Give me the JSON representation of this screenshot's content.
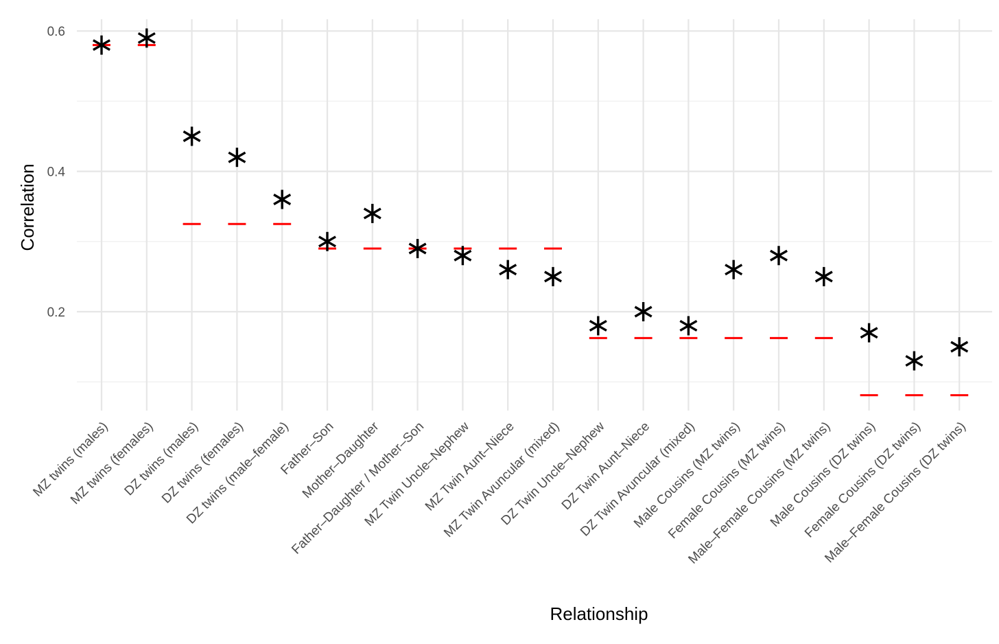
{
  "chart_data": {
    "type": "scatter",
    "xlabel": "Relationship",
    "ylabel": "Correlation",
    "ylim": [
      0.065,
      0.615
    ],
    "yticks": [
      0.2,
      0.4,
      0.6
    ],
    "ytick_labels": [
      "0.2",
      "0.4",
      "0.6"
    ],
    "grid": true,
    "legend": "none",
    "categories": [
      "MZ twins (males)",
      "MZ twins (females)",
      "DZ twins (males)",
      "DZ twins (females)",
      "DZ twins (male–female)",
      "Father–Son",
      "Mother–Daughter",
      "Father–Daughter / Mother–Son",
      "MZ Twin Uncle–Nephew",
      "MZ Twin Aunt–Niece",
      "MZ Twin Avuncular (mixed)",
      "DZ Twin Uncle–Nephew",
      "DZ Twin Aunt–Niece",
      "DZ Twin Avuncular (mixed)",
      "Male Cousins (MZ twins)",
      "Female Cousins (MZ twins)",
      "Male–Female Cousins (MZ twins)",
      "Male Cousins (DZ twins)",
      "Female Cousins (DZ twins)",
      "Male–Female Cousins (DZ twins)"
    ],
    "series": [
      {
        "marker": "asterisk",
        "color": "#000000",
        "values": [
          0.58,
          0.59,
          0.45,
          0.42,
          0.36,
          0.3,
          0.34,
          0.29,
          0.28,
          0.26,
          0.25,
          0.18,
          0.2,
          0.18,
          0.26,
          0.28,
          0.25,
          0.17,
          0.13,
          0.15
        ]
      },
      {
        "marker": "dash",
        "color": "#ff0000",
        "values": [
          0.58,
          0.58,
          0.325,
          0.325,
          0.325,
          0.29,
          0.29,
          0.29,
          0.29,
          0.29,
          0.29,
          0.1625,
          0.1625,
          0.1625,
          0.1625,
          0.1625,
          0.1625,
          0.081,
          0.081,
          0.081
        ]
      }
    ]
  }
}
